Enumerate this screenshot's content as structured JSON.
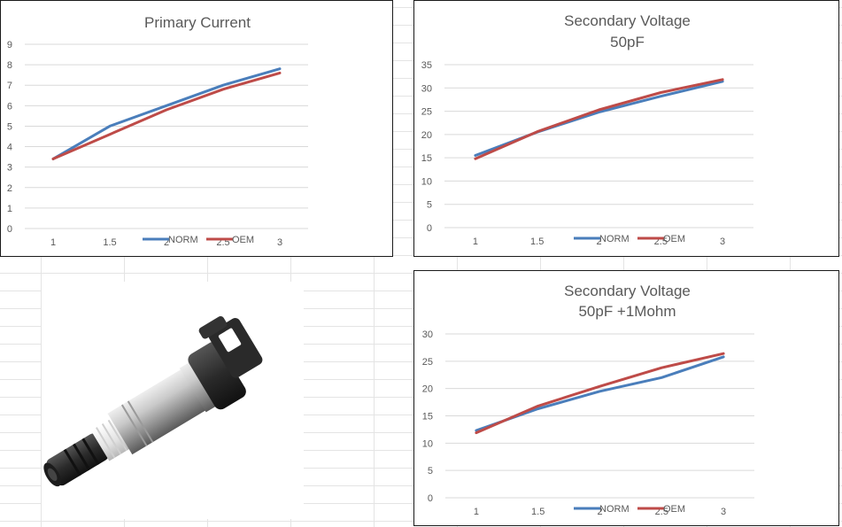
{
  "chart_data": [
    {
      "type": "line",
      "title": "Primary Current",
      "subtitle": "",
      "x": [
        1,
        1.5,
        2,
        2.5,
        3
      ],
      "x_tick_labels": [
        "1",
        "1.5",
        "2",
        "2.5",
        "3"
      ],
      "y_tick_labels": [
        "0",
        "1",
        "2",
        "3",
        "4",
        "5",
        "6",
        "7",
        "8",
        "9"
      ],
      "ylim": [
        0,
        9
      ],
      "grid": true,
      "legend": "bottom",
      "series": [
        {
          "name": "NORM",
          "color": "#4a7ebb",
          "values": [
            3.4,
            5.0,
            6.0,
            7.0,
            7.8
          ]
        },
        {
          "name": "OEM",
          "color": "#be4b48",
          "values": [
            3.4,
            4.6,
            5.8,
            6.8,
            7.6
          ]
        }
      ]
    },
    {
      "type": "line",
      "title": "Secondary Voltage",
      "subtitle": "50pF",
      "x": [
        1,
        1.5,
        2,
        2.5,
        3
      ],
      "x_tick_labels": [
        "1",
        "1.5",
        "2",
        "2.5",
        "3"
      ],
      "y_tick_labels": [
        "0",
        "5",
        "10",
        "15",
        "20",
        "25",
        "30",
        "35"
      ],
      "ylim": [
        0,
        35
      ],
      "grid": true,
      "legend": "bottom",
      "series": [
        {
          "name": "NORM",
          "color": "#4a7ebb",
          "values": [
            15.5,
            20.5,
            24.8,
            28.2,
            31.4
          ]
        },
        {
          "name": "OEM",
          "color": "#be4b48",
          "values": [
            14.8,
            20.6,
            25.3,
            29.0,
            31.8
          ]
        }
      ]
    },
    {
      "type": "line",
      "title": "Secondary Voltage",
      "subtitle": "50pF +1Mohm",
      "x": [
        1,
        1.5,
        2,
        2.5,
        3
      ],
      "x_tick_labels": [
        "1",
        "1.5",
        "2",
        "2.5",
        "3"
      ],
      "y_tick_labels": [
        "0",
        "5",
        "10",
        "15",
        "20",
        "25",
        "30"
      ],
      "ylim": [
        0,
        30
      ],
      "grid": true,
      "legend": "bottom",
      "series": [
        {
          "name": "NORM",
          "color": "#4a7ebb",
          "values": [
            12.3,
            16.3,
            19.5,
            22.0,
            25.8
          ]
        },
        {
          "name": "OEM",
          "color": "#be4b48",
          "values": [
            11.9,
            16.8,
            20.4,
            23.8,
            26.4
          ]
        }
      ]
    }
  ],
  "photo": {
    "icon": "ignition-coil-icon"
  }
}
